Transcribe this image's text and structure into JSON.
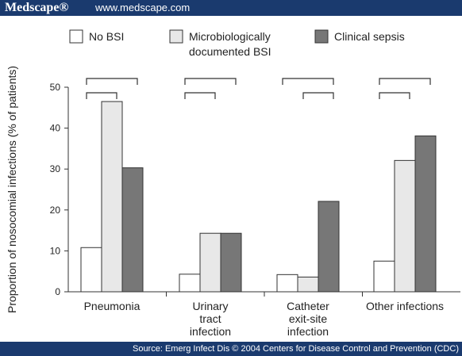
{
  "header": {
    "brand": "Medscape®",
    "url": "www.medscape.com"
  },
  "footer": {
    "source": "Source: Emerg Infect Dis © 2004 Centers for Disease Control and Prevention (CDC)"
  },
  "colors": {
    "banner": "#1a3a6e",
    "no_bsi": "#ffffff",
    "micro_bsi": "#e8e8e8",
    "clinical_sepsis": "#777777",
    "ink": "#222222"
  },
  "chart_data": {
    "type": "bar",
    "ylabel": "Proportion of nosocomial infections (% of patients)",
    "ylim": [
      0,
      50
    ],
    "yticks": [
      0,
      10,
      20,
      30,
      40,
      50
    ],
    "categories": [
      [
        "Pneumonia"
      ],
      [
        "Urinary",
        "tract",
        "infection"
      ],
      [
        "Catheter",
        "exit-site",
        "infection"
      ],
      [
        "Other infections"
      ]
    ],
    "series": [
      {
        "name": "No BSI",
        "legend_lines": [
          "No BSI"
        ],
        "color": "#ffffff",
        "values": [
          10.8,
          4.3,
          4.2,
          7.5
        ]
      },
      {
        "name": "Microbiologically documented BSI",
        "legend_lines": [
          "Microbiologically",
          "documented BSI"
        ],
        "color": "#e8e8e8",
        "values": [
          46.5,
          14.3,
          3.6,
          32.1
        ]
      },
      {
        "name": "Clinical sepsis",
        "legend_lines": [
          "Clinical sepsis"
        ],
        "color": "#777777",
        "values": [
          30.3,
          14.3,
          22.1,
          38.1
        ]
      }
    ],
    "comparison_brackets": [
      [
        "No BSI–Clinical sepsis",
        "No BSI–Microbiologically documented BSI"
      ],
      [
        "No BSI–Clinical sepsis",
        "No BSI–Microbiologically documented BSI"
      ],
      [
        "No BSI–Clinical sepsis",
        "Microbiologically documented BSI–Clinical sepsis"
      ],
      [
        "No BSI–Clinical sepsis",
        "No BSI–Microbiologically documented BSI"
      ]
    ],
    "legend_position": "top",
    "grid": false
  }
}
